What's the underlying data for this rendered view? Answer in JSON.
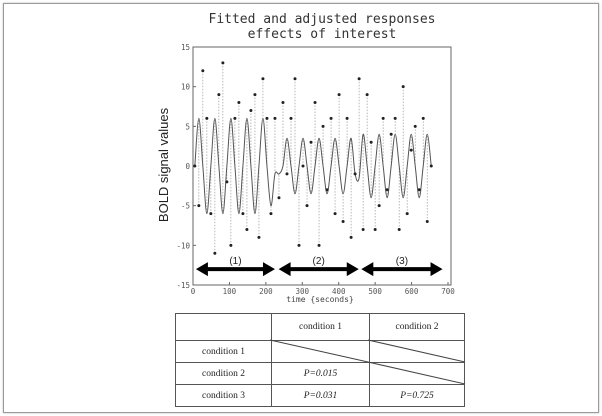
{
  "chart_data": {
    "type": "line",
    "title": [
      "Fitted and adjusted responses",
      "effects of interest"
    ],
    "xlabel": "time {seconds}",
    "ylabel": "BOLD signal values",
    "xlim": [
      0,
      700
    ],
    "ylim": [
      -15,
      15
    ],
    "xticks": [
      0,
      100,
      200,
      300,
      400,
      500,
      600,
      700
    ],
    "yticks": [
      -15,
      -10,
      -5,
      0,
      5,
      10,
      15
    ],
    "grid": false,
    "x": [
      5,
      16,
      27,
      38,
      49,
      60,
      71,
      82,
      93,
      104,
      115,
      126,
      137,
      148,
      159,
      170,
      181,
      192,
      203,
      214,
      225,
      236,
      247,
      258,
      269,
      280,
      291,
      302,
      313,
      324,
      335,
      346,
      357,
      368,
      379,
      390,
      401,
      412,
      423,
      434,
      445,
      456,
      467,
      478,
      489,
      500,
      511,
      522,
      533,
      544,
      555,
      566,
      577,
      588,
      599,
      610,
      621,
      632,
      643,
      654
    ],
    "series": [
      {
        "style": "points with dotted residual lines",
        "color": "#222222",
        "values": [
          0,
          -5,
          12,
          6,
          -6,
          -11,
          9,
          13,
          -2,
          -10,
          6,
          8,
          -6,
          -8,
          7,
          9,
          -9,
          11,
          6,
          -6,
          6,
          -4,
          8,
          -1,
          6,
          11,
          -10,
          0,
          -5,
          3,
          8,
          -10,
          5,
          -3,
          6,
          -6,
          9,
          -7,
          6,
          -9,
          -1,
          11,
          -8,
          9,
          3,
          -8,
          -5,
          6,
          -3,
          4,
          6,
          -8,
          10,
          -6,
          2,
          5,
          -3,
          6,
          -7,
          0
        ]
      },
      {
        "style": "solid fitted line",
        "color": "#555555",
        "values": [
          0,
          6,
          0,
          -6,
          0,
          6,
          0,
          -6,
          0,
          6,
          0,
          -6,
          0,
          6,
          0,
          -6,
          0,
          6,
          0,
          -5,
          -1,
          -1,
          0,
          3.5,
          0,
          -3.5,
          0,
          3.5,
          0,
          -3.5,
          0,
          3.5,
          0,
          -3.5,
          0,
          3.5,
          0,
          -3.5,
          0,
          3.5,
          -1,
          -1.5,
          4,
          0,
          -4,
          0,
          4,
          0,
          -4,
          0,
          4,
          0,
          -4,
          0,
          4,
          0,
          -4,
          0,
          4,
          0
        ]
      }
    ],
    "annotations": [
      {
        "label": "(1)",
        "from": 8,
        "to": 225,
        "y": -13
      },
      {
        "label": "(2)",
        "from": 235,
        "to": 455,
        "y": -13
      },
      {
        "label": "(3)",
        "from": 462,
        "to": 685,
        "y": -13
      }
    ]
  },
  "table": {
    "columns": [
      "",
      "condition 1",
      "condition 2"
    ],
    "rows": [
      {
        "label": "condition 1",
        "cells": [
          "",
          ""
        ]
      },
      {
        "label": "condition 2",
        "cells": [
          "P=0.015",
          ""
        ]
      },
      {
        "label": "condition 3",
        "cells": [
          "P=0.031",
          "P=0.725"
        ]
      }
    ]
  }
}
